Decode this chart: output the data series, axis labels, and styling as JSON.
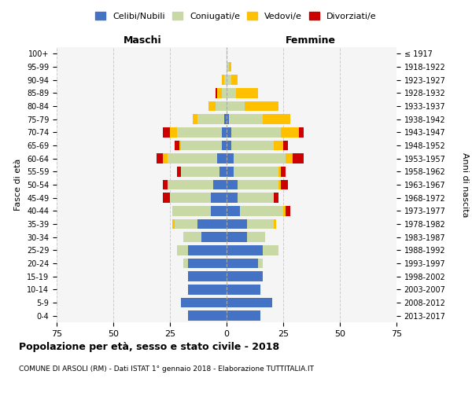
{
  "age_groups": [
    "0-4",
    "5-9",
    "10-14",
    "15-19",
    "20-24",
    "25-29",
    "30-34",
    "35-39",
    "40-44",
    "45-49",
    "50-54",
    "55-59",
    "60-64",
    "65-69",
    "70-74",
    "75-79",
    "80-84",
    "85-89",
    "90-94",
    "95-99",
    "100+"
  ],
  "birth_years": [
    "2013-2017",
    "2008-2012",
    "2003-2007",
    "1998-2002",
    "1993-1997",
    "1988-1992",
    "1983-1987",
    "1978-1982",
    "1973-1977",
    "1968-1972",
    "1963-1967",
    "1958-1962",
    "1953-1957",
    "1948-1952",
    "1943-1947",
    "1938-1942",
    "1933-1937",
    "1928-1932",
    "1923-1927",
    "1918-1922",
    "≤ 1917"
  ],
  "maschi": {
    "celibi": [
      17,
      20,
      17,
      17,
      17,
      17,
      11,
      13,
      7,
      7,
      6,
      3,
      4,
      2,
      2,
      1,
      0,
      0,
      0,
      0,
      0
    ],
    "coniugati": [
      0,
      0,
      0,
      0,
      2,
      5,
      8,
      10,
      17,
      18,
      20,
      17,
      22,
      18,
      20,
      12,
      5,
      2,
      1,
      0,
      0
    ],
    "vedovi": [
      0,
      0,
      0,
      0,
      0,
      0,
      0,
      1,
      0,
      0,
      0,
      0,
      2,
      1,
      3,
      2,
      3,
      2,
      1,
      0,
      0
    ],
    "divorziati": [
      0,
      0,
      0,
      0,
      0,
      0,
      0,
      0,
      0,
      3,
      2,
      2,
      3,
      2,
      3,
      0,
      0,
      1,
      0,
      0,
      0
    ]
  },
  "femmine": {
    "nubili": [
      15,
      20,
      15,
      16,
      14,
      16,
      9,
      9,
      6,
      5,
      5,
      3,
      3,
      2,
      2,
      1,
      0,
      0,
      0,
      0,
      0
    ],
    "coniugate": [
      0,
      0,
      0,
      0,
      2,
      7,
      8,
      12,
      19,
      16,
      18,
      20,
      23,
      19,
      22,
      15,
      8,
      4,
      2,
      1,
      0
    ],
    "vedove": [
      0,
      0,
      0,
      0,
      0,
      0,
      0,
      1,
      1,
      0,
      1,
      1,
      3,
      4,
      8,
      12,
      15,
      10,
      3,
      1,
      0
    ],
    "divorziate": [
      0,
      0,
      0,
      0,
      0,
      0,
      0,
      0,
      2,
      2,
      3,
      2,
      5,
      2,
      2,
      0,
      0,
      0,
      0,
      0,
      0
    ]
  },
  "colors": {
    "celibi": "#4472c4",
    "coniugati": "#c8d9a5",
    "vedovi": "#ffc000",
    "divorziati": "#cc0000"
  },
  "xlim": 75,
  "title": "Popolazione per età, sesso e stato civile - 2018",
  "subtitle": "COMUNE DI ARSOLI (RM) - Dati ISTAT 1° gennaio 2018 - Elaborazione TUTTITALIA.IT",
  "ylabel_left": "Fasce di età",
  "ylabel_right": "Anni di nascita",
  "maschi_label": "Maschi",
  "femmine_label": "Femmine",
  "legend_labels": [
    "Celibi/Nubili",
    "Coniugati/e",
    "Vedovi/e",
    "Divorziati/e"
  ],
  "bg_color": "#f5f5f5",
  "grid_color": "#cccccc"
}
